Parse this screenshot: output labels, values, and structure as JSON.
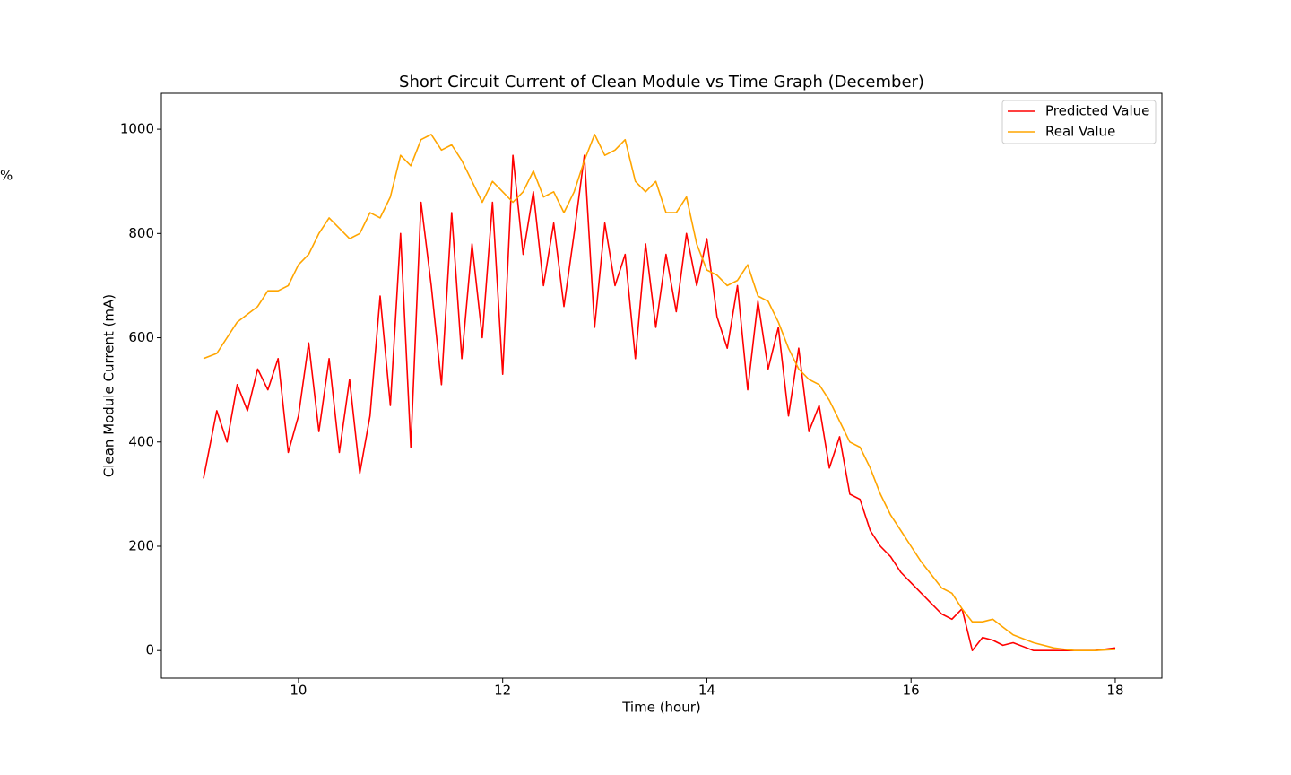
{
  "chart_data": {
    "type": "line",
    "title": "Short Circuit Current of Clean Module vs Time Graph (December)",
    "x_label": "Time (hour)",
    "y_label": "Clean Module Current (mA)",
    "annotation": "%",
    "x": [
      9.07,
      9.2,
      9.3,
      9.4,
      9.5,
      9.6,
      9.7,
      9.8,
      9.9,
      10.0,
      10.1,
      10.2,
      10.3,
      10.4,
      10.5,
      10.6,
      10.7,
      10.8,
      10.9,
      11.0,
      11.1,
      11.2,
      11.3,
      11.4,
      11.5,
      11.6,
      11.7,
      11.8,
      11.9,
      12.0,
      12.1,
      12.2,
      12.3,
      12.4,
      12.5,
      12.6,
      12.7,
      12.8,
      12.9,
      13.0,
      13.1,
      13.2,
      13.3,
      13.4,
      13.5,
      13.6,
      13.7,
      13.8,
      13.9,
      14.0,
      14.1,
      14.2,
      14.3,
      14.4,
      14.5,
      14.6,
      14.7,
      14.8,
      14.9,
      15.0,
      15.1,
      15.2,
      15.3,
      15.4,
      15.5,
      15.6,
      15.7,
      15.8,
      15.9,
      16.0,
      16.1,
      16.2,
      16.3,
      16.4,
      16.5,
      16.6,
      16.7,
      16.8,
      16.9,
      17.0,
      17.2,
      17.4,
      17.6,
      17.8,
      18.0
    ],
    "series": [
      {
        "name": "Predicted Value",
        "color": "#ff0000",
        "values": [
          330,
          460,
          400,
          510,
          460,
          540,
          500,
          560,
          380,
          450,
          590,
          420,
          560,
          380,
          520,
          340,
          450,
          680,
          470,
          800,
          390,
          860,
          700,
          510,
          840,
          560,
          780,
          600,
          860,
          530,
          950,
          760,
          880,
          700,
          820,
          660,
          800,
          950,
          620,
          820,
          700,
          760,
          560,
          780,
          620,
          760,
          650,
          800,
          700,
          790,
          640,
          580,
          700,
          500,
          670,
          540,
          620,
          450,
          580,
          420,
          470,
          350,
          410,
          300,
          290,
          230,
          200,
          180,
          150,
          130,
          110,
          90,
          70,
          60,
          80,
          0,
          25,
          20,
          10,
          15,
          0,
          0,
          0,
          0,
          5
        ]
      },
      {
        "name": "Real Value",
        "color": "#ffa500",
        "values": [
          560,
          570,
          600,
          630,
          645,
          660,
          690,
          690,
          700,
          740,
          760,
          800,
          830,
          810,
          790,
          800,
          840,
          830,
          870,
          950,
          930,
          980,
          990,
          960,
          970,
          940,
          900,
          860,
          900,
          880,
          860,
          880,
          920,
          870,
          880,
          840,
          880,
          940,
          990,
          950,
          960,
          980,
          900,
          880,
          900,
          840,
          840,
          870,
          780,
          730,
          720,
          700,
          710,
          740,
          680,
          670,
          630,
          580,
          540,
          520,
          510,
          480,
          440,
          400,
          390,
          350,
          300,
          260,
          230,
          200,
          170,
          145,
          120,
          110,
          80,
          55,
          55,
          60,
          45,
          30,
          15,
          5,
          0,
          0,
          2
        ]
      }
    ],
    "xlim": [
      8.657,
      18.457
    ],
    "ylim": [
      -53,
      1069
    ],
    "xticks": [
      10,
      12,
      14,
      16,
      18
    ],
    "yticks": [
      0,
      200,
      400,
      600,
      800,
      1000
    ],
    "grid": false,
    "legend": "upper right"
  }
}
